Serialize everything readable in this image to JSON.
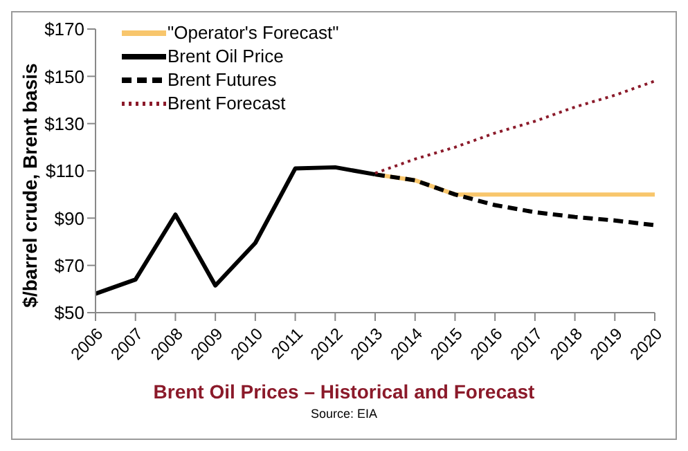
{
  "chart_data": {
    "type": "line",
    "title": "Brent Oil Prices – Historical and Forecast",
    "ylabel": "$/barrel crude, Brent basis",
    "annotations": [
      "Source: EIA"
    ],
    "categories": [
      "2006",
      "2007",
      "2008",
      "2009",
      "2010",
      "2011",
      "2012",
      "2013",
      "2014",
      "2015",
      "2016",
      "2017",
      "2018",
      "2019",
      "2020"
    ],
    "series": [
      {
        "name": "\"Operator's Forecast\"",
        "color": "#f8c66c",
        "line_style": "solid",
        "values": [
          null,
          null,
          null,
          null,
          null,
          null,
          null,
          108.5,
          106,
          100,
          100,
          100,
          100,
          100,
          100
        ]
      },
      {
        "name": "Brent Oil Price",
        "color": "#000000",
        "line_style": "solid",
        "values": [
          58,
          64,
          91.5,
          61.5,
          79.5,
          111,
          111.5,
          108.5,
          null,
          null,
          null,
          null,
          null,
          null,
          null
        ]
      },
      {
        "name": "Brent Futures",
        "color": "#000000",
        "line_style": "dashed",
        "values": [
          null,
          null,
          null,
          null,
          null,
          null,
          null,
          108.5,
          106,
          100,
          95.5,
          92.5,
          90.5,
          89,
          87
        ]
      },
      {
        "name": "Brent Forecast",
        "color": "#8b1a2a",
        "line_style": "dotted",
        "values": [
          null,
          null,
          null,
          null,
          null,
          null,
          null,
          109,
          115,
          120,
          126,
          131,
          137,
          142,
          148
        ]
      }
    ],
    "ylim": [
      50,
      170
    ],
    "yticks": [
      {
        "value": 50,
        "label": "$50"
      },
      {
        "value": 70,
        "label": "$70"
      },
      {
        "value": 90,
        "label": "$90"
      },
      {
        "value": 110,
        "label": "$110"
      },
      {
        "value": 130,
        "label": "$130"
      },
      {
        "value": 150,
        "label": "$150"
      },
      {
        "value": 170,
        "label": "$170"
      }
    ],
    "grid": false,
    "legend": "top left",
    "marker": "none"
  }
}
